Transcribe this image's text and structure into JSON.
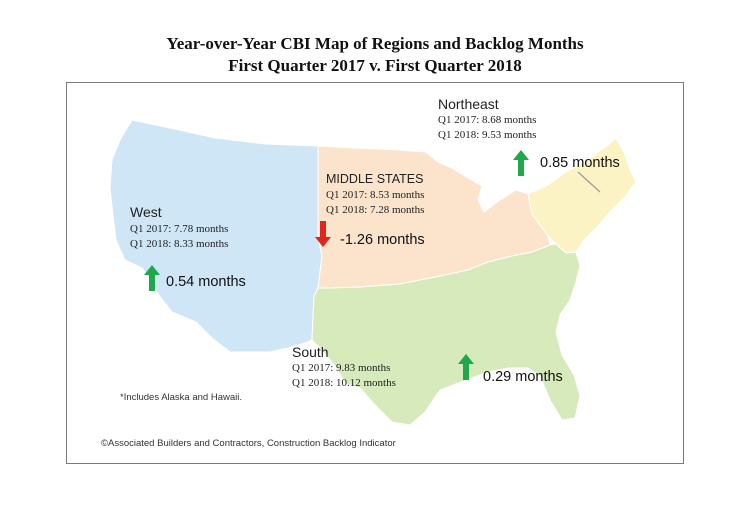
{
  "title": {
    "line1": "Year-over-Year CBI Map of Regions and Backlog Months",
    "line2": "First Quarter 2017 v. First Quarter 2018"
  },
  "colors": {
    "west": "#cfe6f7",
    "middle": "#fbe3cc",
    "northeast": "#fbf3c4",
    "south": "#d7eabb",
    "up_arrow": "#1ea84b",
    "down_arrow": "#e0251b"
  },
  "regions": [
    {
      "id": "west",
      "name": "West",
      "q1_2017": "Q1 2017:  7.78 months",
      "q1_2018": "Q1 2018:  8.33 months",
      "change": "0.54 months",
      "direction": "up",
      "change_value": 0.54
    },
    {
      "id": "middle",
      "name": "MIDDLE STATES",
      "q1_2017": "Q1 2017:  8.53 months",
      "q1_2018": "Q1 2018:  7.28 months",
      "change": "-1.26 months",
      "direction": "down",
      "change_value": -1.26
    },
    {
      "id": "northeast",
      "name": "Northeast",
      "q1_2017": "Q1 2017:  8.68 months",
      "q1_2018": "Q1 2018:  9.53 months",
      "change": "0.85 months",
      "direction": "up",
      "change_value": 0.85
    },
    {
      "id": "south",
      "name": "South",
      "q1_2017": "Q1 2017:  9.83 months",
      "q1_2018": "Q1 2018:  10.12 months",
      "change": "0.29 months",
      "direction": "up",
      "change_value": 0.29
    }
  ],
  "footnote": "*Includes Alaska and Hawaii.",
  "credit": "©Associated Builders and Contractors, Construction Backlog Indicator"
}
